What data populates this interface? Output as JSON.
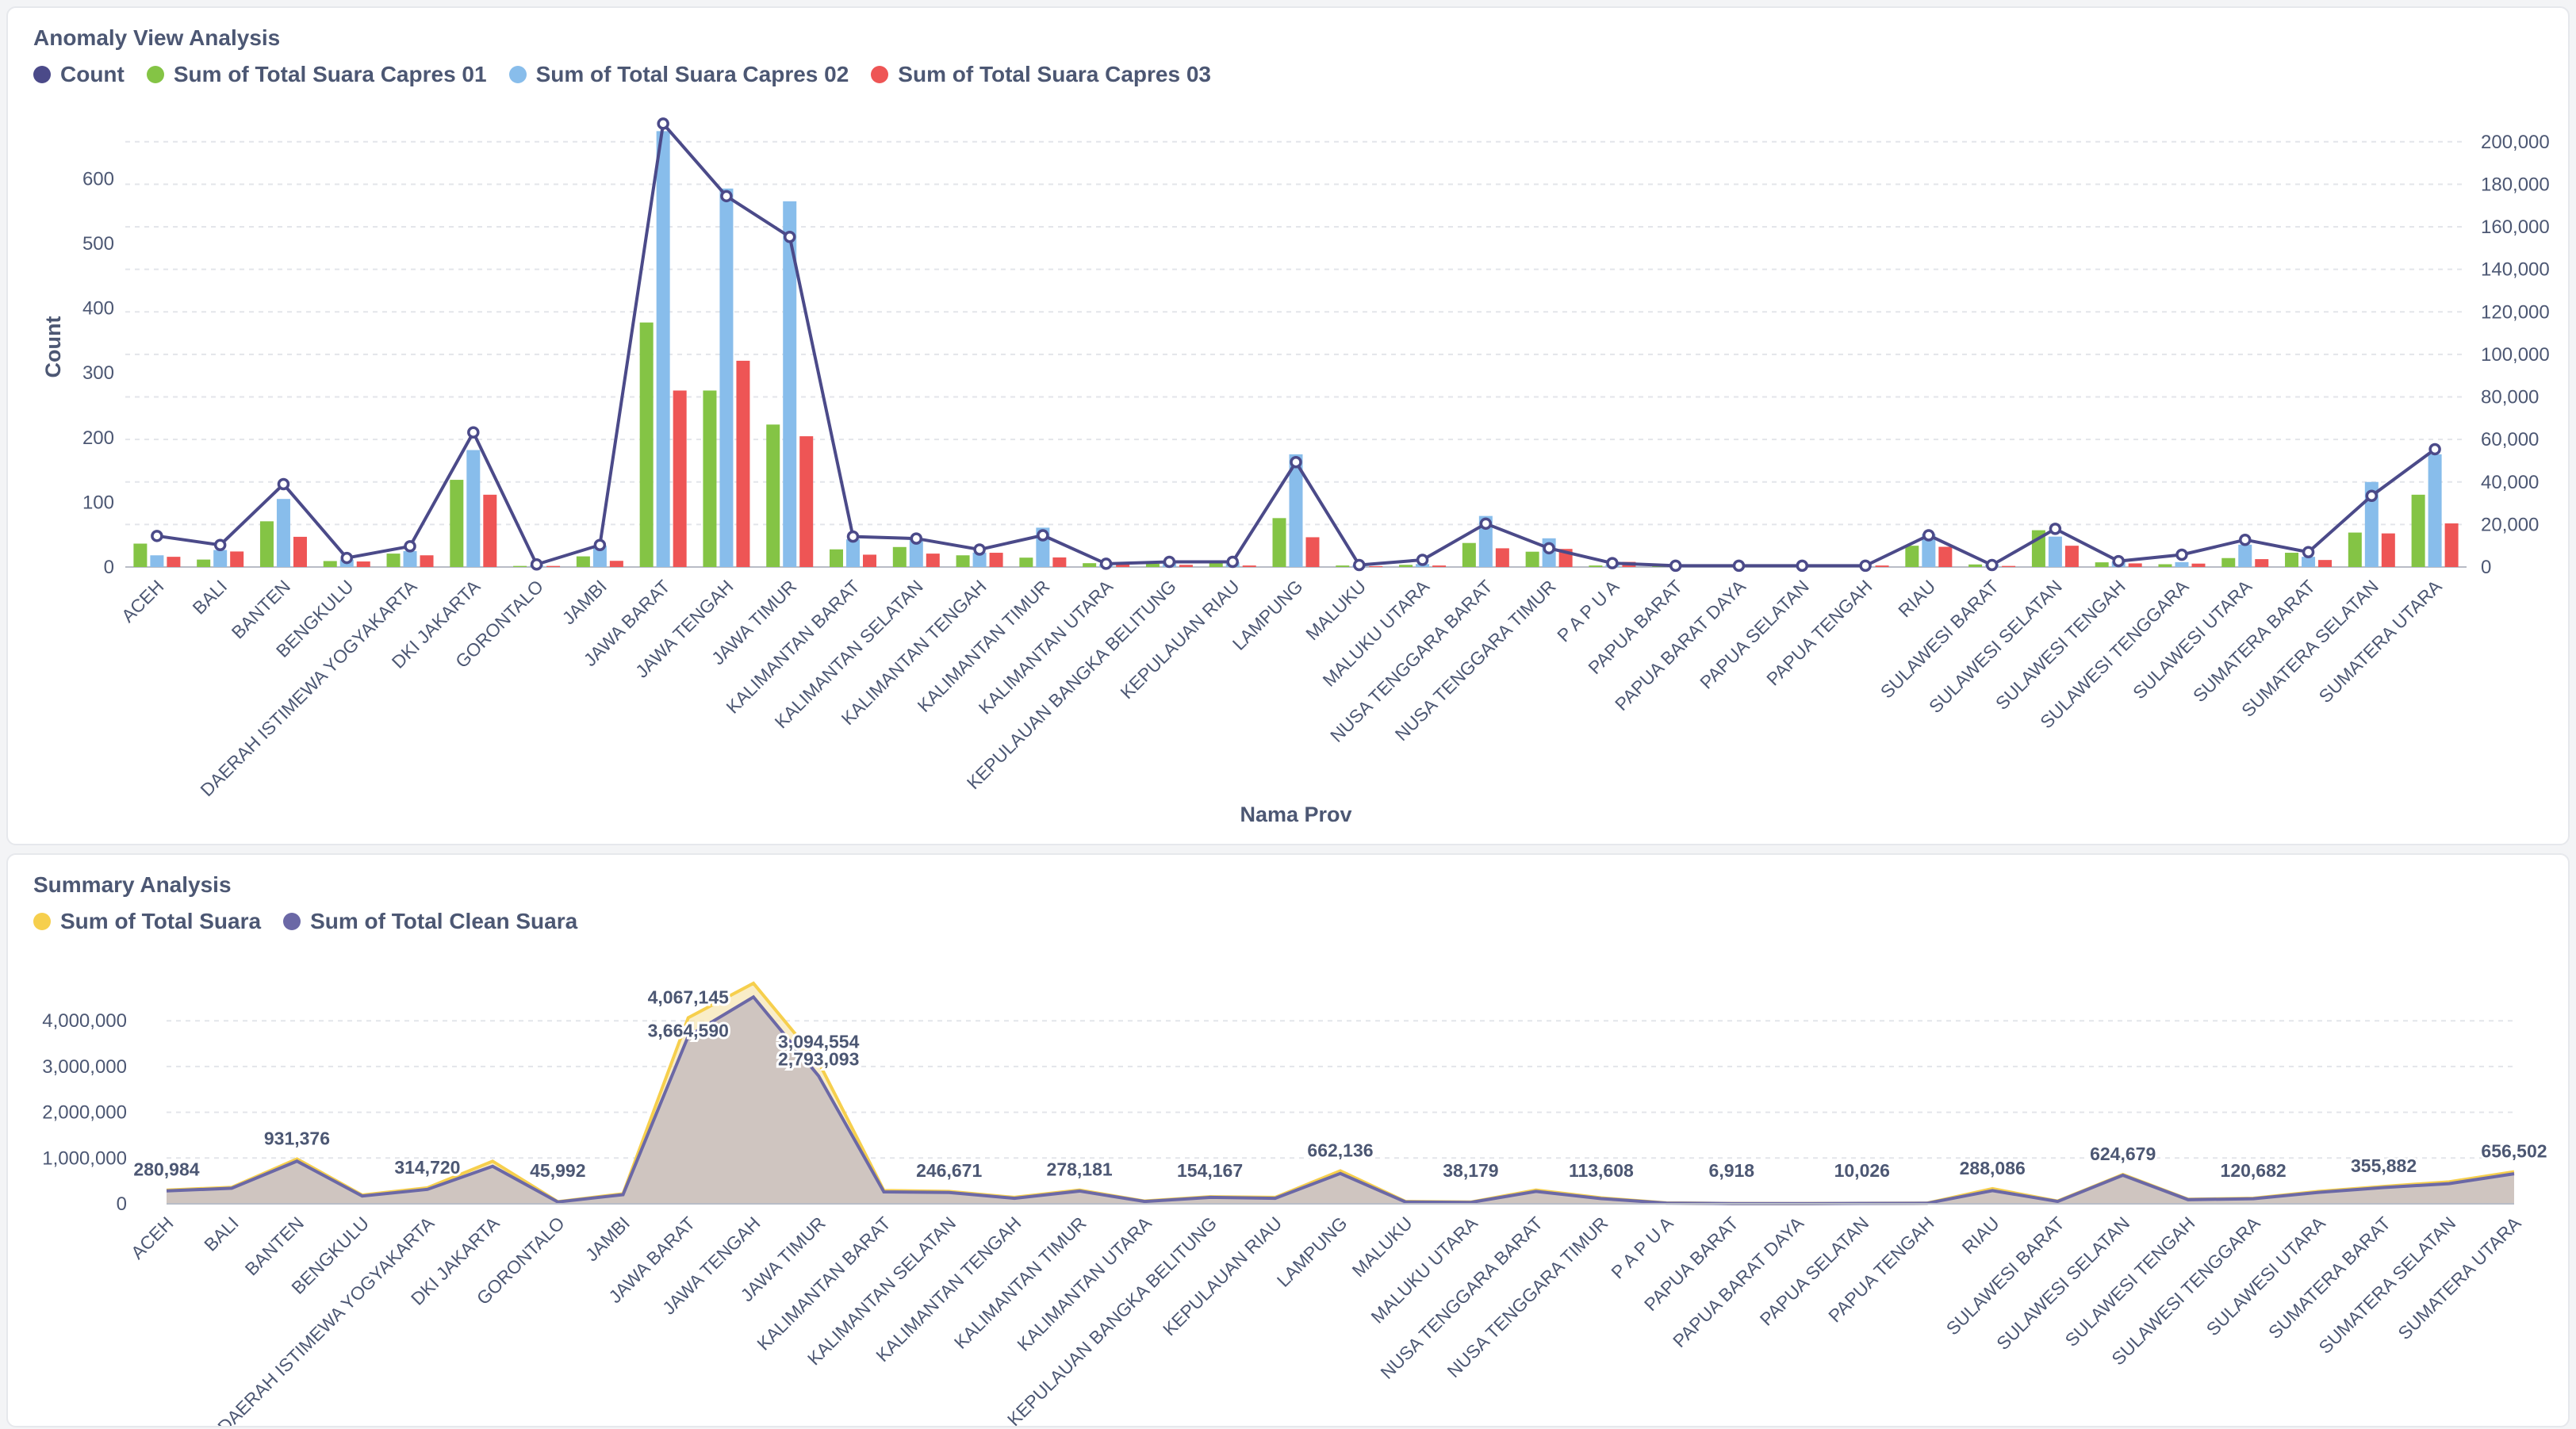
{
  "anomaly": {
    "title": "Anomaly View Analysis",
    "legend": [
      {
        "name": "Count",
        "color": "#4b4a89"
      },
      {
        "name": "Sum of Total Suara Capres 01",
        "color": "#84c445"
      },
      {
        "name": "Sum of Total Suara Capres 02",
        "color": "#88bdeb"
      },
      {
        "name": "Sum of Total Suara Capres 03",
        "color": "#ee5555"
      }
    ]
  },
  "summary": {
    "title": "Summary Analysis",
    "legend": [
      {
        "name": "Sum of Total Suara",
        "color": "#f6cf4d"
      },
      {
        "name": "Sum of Total Clean Suara",
        "color": "#6b68a6"
      }
    ]
  },
  "chart_data": [
    {
      "type": "bar",
      "title": "Anomaly View Analysis",
      "xlabel": "Nama Prov",
      "ylabel": "Count",
      "ylim": [
        0,
        680
      ],
      "y2lim": [
        0,
        207000
      ],
      "y_ticks": [
        0,
        100,
        200,
        300,
        400,
        500,
        600
      ],
      "y2_ticks": [
        0,
        20000,
        40000,
        60000,
        80000,
        100000,
        120000,
        140000,
        160000,
        180000,
        200000
      ],
      "grid": true,
      "legend_position": "top-left",
      "categories": [
        "ACEH",
        "BALI",
        "BANTEN",
        "BENGKULU",
        "DAERAH ISTIMEWA YOGYAKARTA",
        "DKI JAKARTA",
        "GORONTALO",
        "JAMBI",
        "JAWA BARAT",
        "JAWA TENGAH",
        "JAWA TIMUR",
        "KALIMANTAN BARAT",
        "KALIMANTAN SELATAN",
        "KALIMANTAN TENGAH",
        "KALIMANTAN TIMUR",
        "KALIMANTAN UTARA",
        "KEPULAUAN BANGKA BELITUNG",
        "KEPULAUAN RIAU",
        "LAMPUNG",
        "MALUKU",
        "MALUKU UTARA",
        "NUSA TENGGARA BARAT",
        "NUSA TENGGARA TIMUR",
        "P A P U A",
        "PAPUA BARAT",
        "PAPUA BARAT DAYA",
        "PAPUA SELATAN",
        "PAPUA TENGAH",
        "RIAU",
        "SULAWESI BARAT",
        "SULAWESI SELATAN",
        "SULAWESI TENGAH",
        "SULAWESI TENGGARA",
        "SULAWESI UTARA",
        "SUMATERA BARAT",
        "SUMATERA SELATAN",
        "SUMATERA UTARA"
      ],
      "series": [
        {
          "name": "Sum of Total Suara Capres 01",
          "axis": "right",
          "type": "bar",
          "color": "#84c445",
          "values": [
            11000,
            3500,
            21500,
            2800,
            6300,
            41000,
            500,
            5000,
            115000,
            83000,
            67000,
            8300,
            9400,
            5500,
            4400,
            1800,
            1500,
            2500,
            23000,
            700,
            1000,
            11300,
            7200,
            700,
            400,
            300,
            300,
            300,
            10000,
            1200,
            17300,
            2200,
            1300,
            4200,
            6700,
            16200,
            34000
          ]
        },
        {
          "name": "Sum of Total Suara Capres 02",
          "axis": "right",
          "type": "bar",
          "color": "#88bdeb",
          "values": [
            5500,
            8000,
            32000,
            3500,
            7500,
            55000,
            800,
            10000,
            205000,
            178000,
            172000,
            13000,
            13200,
            6800,
            18500,
            1300,
            1700,
            2300,
            53000,
            900,
            1400,
            24000,
            13500,
            1000,
            600,
            400,
            400,
            400,
            15500,
            1300,
            14300,
            2500,
            2300,
            10500,
            4800,
            40000,
            53000
          ]
        },
        {
          "name": "Sum of Total Suara Capres 03",
          "axis": "right",
          "type": "bar",
          "color": "#ee5555",
          "values": [
            4800,
            7300,
            14200,
            2600,
            5500,
            34000,
            500,
            2900,
            83000,
            97000,
            61500,
            5800,
            6300,
            6700,
            4500,
            1300,
            1000,
            700,
            14000,
            400,
            700,
            8800,
            8500,
            2400,
            300,
            200,
            200,
            700,
            9500,
            500,
            10000,
            1700,
            1600,
            3700,
            3300,
            15800,
            20500
          ]
        },
        {
          "name": "Count",
          "axis": "left",
          "type": "line",
          "color": "#4b4a89",
          "values": [
            48,
            34,
            128,
            14,
            32,
            208,
            4,
            34,
            685,
            573,
            510,
            47,
            44,
            27,
            49,
            5,
            8,
            8,
            162,
            3,
            11,
            67,
            29,
            6,
            2,
            2,
            2,
            2,
            49,
            3,
            59,
            9,
            19,
            42,
            23,
            110,
            182
          ]
        }
      ]
    },
    {
      "type": "area",
      "title": "Summary Analysis",
      "xlabel": "",
      "ylabel": "",
      "ylim": [
        0,
        5200000
      ],
      "y_ticks": [
        0,
        1000000,
        2000000,
        3000000,
        4000000
      ],
      "grid": true,
      "legend_position": "top-left",
      "categories": [
        "ACEH",
        "BALI",
        "BANTEN",
        "BENGKULU",
        "DAERAH ISTIMEWA YOGYAKARTA",
        "DKI JAKARTA",
        "GORONTALO",
        "JAMBI",
        "JAWA BARAT",
        "JAWA TENGAH",
        "JAWA TIMUR",
        "KALIMANTAN BARAT",
        "KALIMANTAN SELATAN",
        "KALIMANTAN TENGAH",
        "KALIMANTAN TIMUR",
        "KALIMANTAN UTARA",
        "KEPULAUAN BANGKA BELITUNG",
        "KEPULAUAN RIAU",
        "LAMPUNG",
        "MALUKU",
        "MALUKU UTARA",
        "NUSA TENGGARA BARAT",
        "NUSA TENGGARA TIMUR",
        "P A P U A",
        "PAPUA BARAT",
        "PAPUA BARAT DAYA",
        "PAPUA SELATAN",
        "PAPUA TENGAH",
        "RIAU",
        "SULAWESI BARAT",
        "SULAWESI SELATAN",
        "SULAWESI TENGAH",
        "SULAWESI TENGGARA",
        "SULAWESI UTARA",
        "SUMATERA BARAT",
        "SUMATERA SELATAN",
        "SUMATERA UTARA"
      ],
      "series": [
        {
          "name": "Sum of Total Suara",
          "color": "#f6cf4d",
          "values": [
            300000,
            360000,
            980000,
            190000,
            350000,
            930000,
            45992,
            220000,
            4067145,
            4820000,
            3094554,
            290000,
            270000,
            140000,
            300000,
            60000,
            154167,
            140000,
            720000,
            50000,
            38179,
            300000,
            130000,
            20000,
            6918,
            5000,
            10026,
            15000,
            330000,
            60000,
            640000,
            100000,
            120682,
            270000,
            380000,
            480000,
            700000
          ]
        },
        {
          "name": "Sum of Total Clean Suara",
          "color": "#6b68a6",
          "values": [
            280984,
            340000,
            931376,
            170000,
            314720,
            820000,
            40000,
            200000,
            3664590,
            4520000,
            2793093,
            260000,
            246671,
            120000,
            278181,
            50000,
            140000,
            120000,
            662136,
            40000,
            30000,
            270000,
            113608,
            15000,
            5000,
            4000,
            8000,
            12000,
            288086,
            50000,
            624679,
            90000,
            110000,
            250000,
            355882,
            440000,
            656502
          ]
        }
      ],
      "data_labels": [
        {
          "category": "ACEH",
          "text": "280,984"
        },
        {
          "category": "BANTEN",
          "text": "931,376"
        },
        {
          "category": "DAERAH ISTIMEWA YOGYAKARTA",
          "text": "314,720"
        },
        {
          "category": "GORONTALO",
          "text": "45,992"
        },
        {
          "category": "JAWA BARAT",
          "text": "4,067,145"
        },
        {
          "category": "JAWA BARAT",
          "text": "3,664,590"
        },
        {
          "category": "JAWA TIMUR",
          "text": "3,094,554"
        },
        {
          "category": "JAWA TIMUR",
          "text": "2,793,093"
        },
        {
          "category": "KALIMANTAN SELATAN",
          "text": "246,671"
        },
        {
          "category": "KALIMANTAN TIMUR",
          "text": "278,181"
        },
        {
          "category": "KEPULAUAN BANGKA BELITUNG",
          "text": "154,167"
        },
        {
          "category": "LAMPUNG",
          "text": "662,136"
        },
        {
          "category": "MALUKU UTARA",
          "text": "38,179"
        },
        {
          "category": "NUSA TENGGARA TIMUR",
          "text": "113,608"
        },
        {
          "category": "PAPUA BARAT",
          "text": "6,918"
        },
        {
          "category": "PAPUA SELATAN",
          "text": "10,026"
        },
        {
          "category": "RIAU",
          "text": "288,086"
        },
        {
          "category": "SULAWESI SELATAN",
          "text": "624,679"
        },
        {
          "category": "SULAWESI TENGGARA",
          "text": "120,682"
        },
        {
          "category": "SUMATERA BARAT",
          "text": "355,882"
        },
        {
          "category": "SUMATERA UTARA",
          "text": "656,502"
        }
      ]
    }
  ]
}
